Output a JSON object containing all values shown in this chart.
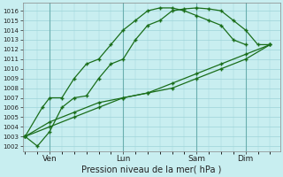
{
  "bg_color": "#c8eef0",
  "grid_color": "#9dd4d8",
  "line_color": "#1a6e1a",
  "marker": "+",
  "title": "Pression niveau de la mer( hPa )",
  "ylim": [
    1001.5,
    1016.8
  ],
  "yticks": [
    1002,
    1003,
    1004,
    1005,
    1006,
    1007,
    1008,
    1009,
    1010,
    1011,
    1012,
    1013,
    1014,
    1015,
    1016
  ],
  "xtick_labels": [
    "Ven",
    "Lun",
    "Sam",
    "Dim"
  ],
  "xtick_positions": [
    1,
    4,
    7,
    9
  ],
  "vline_positions": [
    1,
    4,
    7,
    9
  ],
  "lines": {
    "l1": {
      "x": [
        0,
        0.5,
        1.0,
        1.5,
        2.0,
        2.5,
        3.0,
        3.5,
        4.0,
        4.5,
        5.0,
        5.5,
        6.0,
        6.5,
        7.0,
        7.5,
        8.0,
        8.5,
        9.0,
        9.5,
        10.0
      ],
      "y": [
        1003.0,
        1002.0,
        1003.5,
        1006.0,
        1007.0,
        1007.2,
        1009.0,
        1010.5,
        1011.0,
        1013.0,
        1014.5,
        1015.0,
        1016.0,
        1016.2,
        1016.3,
        1016.2,
        1016.0,
        1015.0,
        1014.0,
        1012.5,
        1012.5
      ]
    },
    "l2": {
      "x": [
        0,
        0.7,
        1.0,
        1.5,
        2.0,
        2.5,
        3.0,
        3.5,
        4.0,
        4.5,
        5.0,
        5.5,
        6.0,
        6.5,
        7.0,
        7.5,
        8.0,
        8.5,
        9.0
      ],
      "y": [
        1003.0,
        1006.0,
        1007.0,
        1007.0,
        1009.0,
        1010.5,
        1011.0,
        1012.5,
        1014.0,
        1015.0,
        1016.0,
        1016.3,
        1016.3,
        1016.0,
        1015.5,
        1015.0,
        1014.5,
        1013.0,
        1012.5
      ]
    },
    "l3": {
      "x": [
        0,
        1.0,
        2.0,
        3.0,
        4.0,
        5.0,
        6.0,
        7.0,
        8.0,
        9.0,
        10.0
      ],
      "y": [
        1003.0,
        1004.5,
        1005.5,
        1006.5,
        1007.0,
        1007.5,
        1008.5,
        1009.5,
        1010.5,
        1011.5,
        1012.5
      ]
    },
    "l4": {
      "x": [
        0,
        1.0,
        2.0,
        3.0,
        4.0,
        5.0,
        6.0,
        7.0,
        8.0,
        9.0,
        10.0
      ],
      "y": [
        1003.0,
        1004.0,
        1005.0,
        1006.0,
        1007.0,
        1007.5,
        1008.0,
        1009.0,
        1010.0,
        1011.0,
        1012.5
      ]
    }
  },
  "xlim": [
    -0.1,
    10.4
  ]
}
